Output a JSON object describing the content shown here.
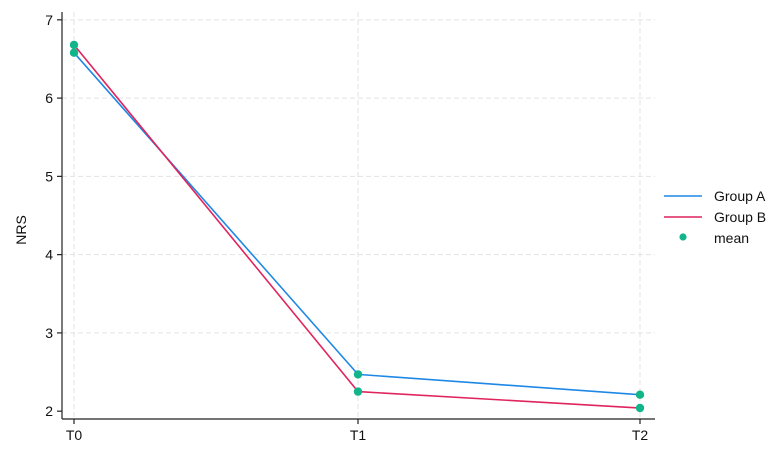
{
  "chart_data": {
    "type": "line",
    "ylabel": "NRS",
    "xlabel": "",
    "title": "",
    "categories": [
      "T0",
      "T1",
      "T2"
    ],
    "yticks": [
      2,
      3,
      4,
      5,
      6,
      7
    ],
    "ylim": [
      1.9,
      7.1
    ],
    "grid": true,
    "legend_position": "right",
    "series": [
      {
        "name": "Group A",
        "values": [
          6.58,
          2.47,
          2.21
        ],
        "color": "#1e88e5"
      },
      {
        "name": "Group B",
        "values": [
          6.68,
          2.25,
          2.04
        ],
        "color": "#e0245e"
      }
    ],
    "mean_marker": {
      "name": "mean",
      "color": "#12b58a"
    }
  }
}
